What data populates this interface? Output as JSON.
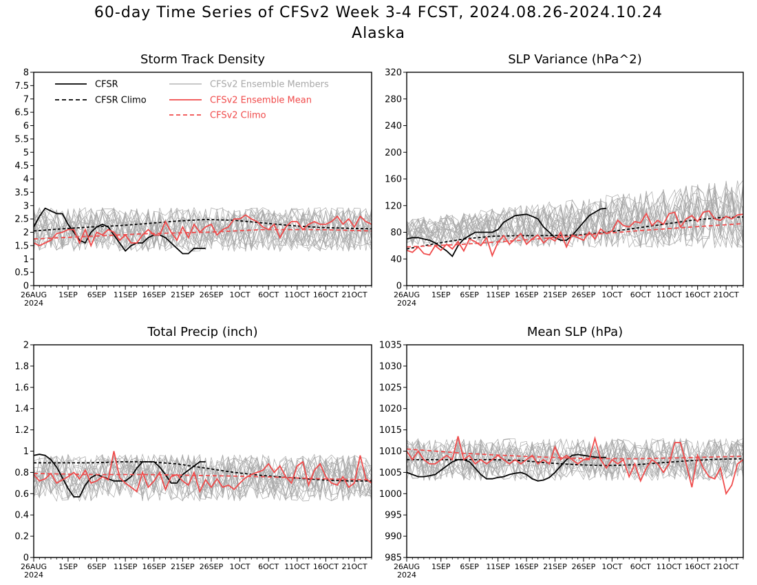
{
  "title": "60-day Time Series of CFSv2 Week 3-4 FCST, 2024.08.26-2024.10.24",
  "subtitle": "Alaska",
  "colors": {
    "cfsr": "#000000",
    "ensemble_member": "#a8a8a8",
    "ensemble_mean": "#f04a4a"
  },
  "x_ticks": [
    "26AUG",
    "1SEP",
    "6SEP",
    "11SEP",
    "16SEP",
    "21SEP",
    "26SEP",
    "1OCT",
    "6OCT",
    "11OCT",
    "16OCT",
    "21OCT"
  ],
  "x_tick_days": [
    0,
    6,
    11,
    16,
    21,
    26,
    31,
    36,
    41,
    46,
    51,
    56
  ],
  "x_year": "2024",
  "legend": {
    "cfsr": "CFSR",
    "cfsr_climo": "CFSR Climo",
    "members": "CFSv2 Ensemble Members",
    "ens_mean": "CFSv2 Ensemble Mean",
    "cfsv2_climo": "CFSv2 Climo"
  },
  "chart_data": [
    {
      "type": "line",
      "title": "Storm Track Density",
      "x_unit": "days since 26AUG2024",
      "xlim": [
        0,
        59
      ],
      "ylim": [
        0,
        8
      ],
      "y_ticks": [
        "0",
        "0.5",
        "1",
        "1.5",
        "2",
        "2.5",
        "3",
        "3.5",
        "4",
        "4.5",
        "5",
        "5.5",
        "6",
        "6.5",
        "7",
        "7.5",
        "8"
      ],
      "member_center": 2.1,
      "member_spread": 0.75,
      "member_count": 20,
      "series": [
        {
          "name": "CFSR",
          "x": [
            0,
            1,
            2,
            3,
            4,
            5,
            6,
            7,
            8,
            9,
            10,
            11,
            12,
            13,
            14,
            15,
            16,
            17,
            18,
            19,
            20,
            21,
            22,
            23,
            24,
            25,
            26,
            27,
            28,
            29,
            30
          ],
          "values": [
            2.2,
            2.6,
            2.9,
            2.8,
            2.7,
            2.7,
            2.3,
            2.0,
            1.7,
            1.6,
            2.0,
            2.2,
            2.3,
            2.2,
            1.9,
            1.6,
            1.3,
            1.5,
            1.6,
            1.6,
            1.8,
            1.9,
            1.9,
            1.8,
            1.6,
            1.4,
            1.2,
            1.2,
            1.4,
            1.4,
            1.4
          ]
        },
        {
          "name": "CFSR Climo",
          "x": [
            0,
            5,
            10,
            15,
            20,
            25,
            30,
            35,
            40,
            45,
            50,
            55,
            59
          ],
          "values": [
            2.05,
            2.13,
            2.2,
            2.25,
            2.33,
            2.42,
            2.48,
            2.45,
            2.35,
            2.25,
            2.18,
            2.15,
            2.13
          ]
        },
        {
          "name": "CFSv2 Ensemble Mean",
          "x": [
            0,
            1,
            2,
            3,
            4,
            5,
            6,
            7,
            8,
            9,
            10,
            11,
            12,
            13,
            14,
            15,
            16,
            17,
            18,
            19,
            20,
            21,
            22,
            23,
            24,
            25,
            26,
            27,
            28,
            29,
            30,
            31,
            32,
            33,
            34,
            35,
            36,
            37,
            38,
            39,
            40,
            41,
            42,
            43,
            44,
            45,
            46,
            47,
            48,
            49,
            50,
            51,
            52,
            53,
            54,
            55,
            56,
            57,
            58,
            59
          ],
          "values": [
            1.6,
            1.5,
            1.6,
            1.7,
            1.95,
            2.0,
            2.1,
            2.1,
            1.6,
            2.1,
            1.5,
            2.0,
            1.9,
            2.1,
            2.0,
            1.7,
            1.9,
            1.6,
            1.6,
            1.9,
            2.1,
            1.9,
            1.9,
            2.4,
            2.0,
            1.7,
            2.2,
            1.8,
            2.3,
            2.0,
            2.2,
            2.3,
            1.9,
            2.1,
            2.2,
            2.5,
            2.5,
            2.65,
            2.5,
            2.4,
            2.2,
            2.1,
            2.3,
            1.8,
            2.2,
            2.4,
            2.4,
            2.1,
            2.3,
            2.4,
            2.3,
            2.3,
            2.4,
            2.6,
            2.3,
            2.5,
            2.2,
            2.6,
            2.4,
            2.3
          ]
        },
        {
          "name": "CFSv2 Climo",
          "x": [
            0,
            10,
            20,
            30,
            40,
            50,
            59
          ],
          "values": [
            1.75,
            1.85,
            1.95,
            2.0,
            2.1,
            2.1,
            2.05
          ]
        }
      ]
    },
    {
      "type": "line",
      "title": "SLP Variance (hPa^2)",
      "x_unit": "days since 26AUG2024",
      "xlim": [
        0,
        59
      ],
      "ylim": [
        0,
        320
      ],
      "y_ticks": [
        "0",
        "40",
        "80",
        "120",
        "160",
        "200",
        "240",
        "280",
        "320"
      ],
      "member_center": 80,
      "member_spread": 30,
      "member_count": 20,
      "series": [
        {
          "name": "CFSR",
          "x": [
            0,
            1,
            2,
            3,
            4,
            5,
            6,
            7,
            8,
            9,
            10,
            11,
            12,
            13,
            14,
            15,
            16,
            17,
            18,
            19,
            20,
            21,
            22,
            23,
            24,
            25,
            26,
            27,
            28,
            29,
            30,
            31,
            32,
            33,
            34,
            35
          ],
          "values": [
            70,
            72,
            72,
            70,
            68,
            64,
            58,
            52,
            44,
            60,
            70,
            75,
            80,
            80,
            80,
            80,
            84,
            95,
            100,
            105,
            106,
            107,
            104,
            100,
            88,
            80,
            72,
            68,
            68,
            75,
            85,
            95,
            105,
            110,
            115,
            116
          ]
        },
        {
          "name": "CFSR Climo",
          "x": [
            0,
            5,
            10,
            15,
            20,
            25,
            30,
            35,
            40,
            45,
            50,
            55,
            59
          ],
          "values": [
            55,
            63,
            70,
            74,
            75,
            75,
            76,
            80,
            86,
            92,
            98,
            102,
            103
          ]
        },
        {
          "name": "CFSv2 Ensemble Mean",
          "x": [
            0,
            1,
            2,
            3,
            4,
            5,
            6,
            7,
            8,
            9,
            10,
            11,
            12,
            13,
            14,
            15,
            16,
            17,
            18,
            19,
            20,
            21,
            22,
            23,
            24,
            25,
            26,
            27,
            28,
            29,
            30,
            31,
            32,
            33,
            34,
            35,
            36,
            37,
            38,
            39,
            40,
            41,
            42,
            43,
            44,
            45,
            46,
            47,
            48,
            49,
            50,
            51,
            52,
            53,
            54,
            55,
            56,
            57,
            58,
            59
          ],
          "values": [
            53,
            50,
            58,
            48,
            46,
            60,
            53,
            62,
            55,
            66,
            52,
            70,
            66,
            60,
            72,
            45,
            65,
            75,
            62,
            70,
            78,
            62,
            70,
            76,
            64,
            72,
            67,
            80,
            58,
            76,
            72,
            68,
            80,
            70,
            85,
            78,
            82,
            98,
            90,
            88,
            96,
            94,
            108,
            90,
            98,
            92,
            108,
            110,
            88,
            100,
            105,
            96,
            110,
            112,
            100,
            98,
            104,
            100,
            106,
            107
          ]
        },
        {
          "name": "CFSv2 Climo",
          "x": [
            0,
            10,
            20,
            30,
            40,
            50,
            59
          ],
          "values": [
            58,
            62,
            68,
            75,
            82,
            88,
            93
          ]
        }
      ]
    },
    {
      "type": "line",
      "title": "Total Precip (inch)",
      "x_unit": "days since 26AUG2024",
      "xlim": [
        0,
        59
      ],
      "ylim": [
        0,
        2
      ],
      "y_ticks": [
        "0",
        "0.2",
        "0.4",
        "0.6",
        "0.8",
        "1",
        "1.2",
        "1.4",
        "1.6",
        "1.8",
        "2"
      ],
      "member_center": 0.75,
      "member_spread": 0.2,
      "member_count": 20,
      "series": [
        {
          "name": "CFSR",
          "x": [
            0,
            1,
            2,
            3,
            4,
            5,
            6,
            7,
            8,
            9,
            10,
            11,
            12,
            13,
            14,
            15,
            16,
            17,
            18,
            19,
            20,
            21,
            22,
            23,
            24,
            25,
            26,
            27,
            28,
            29,
            30
          ],
          "values": [
            0.96,
            0.97,
            0.96,
            0.92,
            0.85,
            0.75,
            0.65,
            0.57,
            0.57,
            0.68,
            0.75,
            0.78,
            0.76,
            0.74,
            0.72,
            0.72,
            0.72,
            0.76,
            0.84,
            0.9,
            0.9,
            0.9,
            0.85,
            0.78,
            0.7,
            0.7,
            0.78,
            0.82,
            0.86,
            0.9,
            0.9
          ]
        },
        {
          "name": "CFSR Climo",
          "x": [
            0,
            5,
            10,
            15,
            20,
            25,
            30,
            35,
            40,
            45,
            50,
            55,
            59
          ],
          "values": [
            0.89,
            0.89,
            0.89,
            0.9,
            0.9,
            0.88,
            0.84,
            0.8,
            0.77,
            0.75,
            0.73,
            0.72,
            0.72
          ]
        },
        {
          "name": "CFSv2 Ensemble Mean",
          "x": [
            0,
            1,
            2,
            3,
            4,
            5,
            6,
            7,
            8,
            9,
            10,
            11,
            12,
            13,
            14,
            15,
            16,
            17,
            18,
            19,
            20,
            21,
            22,
            23,
            24,
            25,
            26,
            27,
            28,
            29,
            30,
            31,
            32,
            33,
            34,
            35,
            36,
            37,
            38,
            39,
            40,
            41,
            42,
            43,
            44,
            45,
            46,
            47,
            48,
            49,
            50,
            51,
            52,
            53,
            54,
            55,
            56,
            57,
            58,
            59
          ],
          "values": [
            0.78,
            0.72,
            0.74,
            0.79,
            0.7,
            0.73,
            0.76,
            0.8,
            0.74,
            0.82,
            0.7,
            0.72,
            0.76,
            0.73,
            1.0,
            0.75,
            0.7,
            0.66,
            0.62,
            0.8,
            0.66,
            0.72,
            0.8,
            0.64,
            0.76,
            0.78,
            0.72,
            0.68,
            0.8,
            0.62,
            0.73,
            0.66,
            0.74,
            0.66,
            0.68,
            0.64,
            0.7,
            0.75,
            0.78,
            0.8,
            0.82,
            0.88,
            0.8,
            0.86,
            0.76,
            0.7,
            0.86,
            0.9,
            0.68,
            0.82,
            0.88,
            0.76,
            0.7,
            0.68,
            0.76,
            0.66,
            0.7,
            0.96,
            0.74,
            0.7
          ]
        },
        {
          "name": "CFSv2 Climo",
          "x": [
            0,
            10,
            20,
            30,
            40,
            50,
            59
          ],
          "values": [
            0.79,
            0.78,
            0.78,
            0.77,
            0.76,
            0.74,
            0.73
          ]
        }
      ]
    },
    {
      "type": "line",
      "title": "Mean SLP (hPa)",
      "x_unit": "days since 26AUG2024",
      "xlim": [
        0,
        59
      ],
      "ylim": [
        985,
        1035
      ],
      "y_ticks": [
        "985",
        "990",
        "995",
        "1000",
        "1005",
        "1010",
        "1015",
        "1020",
        "1025",
        "1030",
        "1035"
      ],
      "member_center": 1008,
      "member_spread": 4.5,
      "member_count": 20,
      "series": [
        {
          "name": "CFSR",
          "x": [
            0,
            1,
            2,
            3,
            4,
            5,
            6,
            7,
            8,
            9,
            10,
            11,
            12,
            13,
            14,
            15,
            16,
            17,
            18,
            19,
            20,
            21,
            22,
            23,
            24,
            25,
            26,
            27,
            28,
            29,
            30,
            31,
            32,
            33,
            34,
            35
          ],
          "values": [
            1005,
            1004.5,
            1004,
            1004,
            1004.2,
            1004.5,
            1005.5,
            1006.5,
            1007.5,
            1008,
            1008,
            1007.5,
            1006,
            1004.5,
            1003.5,
            1003.5,
            1003.8,
            1004,
            1004.5,
            1004.8,
            1005,
            1004.5,
            1003.5,
            1003,
            1003.2,
            1003.8,
            1005,
            1006.5,
            1008,
            1009,
            1009.2,
            1009,
            1008.8,
            1008.6,
            1008.5,
            1008.5
          ]
        },
        {
          "name": "CFSR Climo",
          "x": [
            0,
            5,
            10,
            15,
            20,
            25,
            30,
            35,
            40,
            45,
            50,
            55,
            59
          ],
          "values": [
            1008,
            1008,
            1008,
            1008,
            1007.8,
            1007.2,
            1006.8,
            1006.6,
            1006.8,
            1007.3,
            1007.8,
            1008.1,
            1008.2
          ]
        },
        {
          "name": "CFSv2 Ensemble Mean",
          "x": [
            0,
            1,
            2,
            3,
            4,
            5,
            6,
            7,
            8,
            9,
            10,
            11,
            12,
            13,
            14,
            15,
            16,
            17,
            18,
            19,
            20,
            21,
            22,
            23,
            24,
            25,
            26,
            27,
            28,
            29,
            30,
            31,
            32,
            33,
            34,
            35,
            36,
            37,
            38,
            39,
            40,
            41,
            42,
            43,
            44,
            45,
            46,
            47,
            48,
            49,
            50,
            51,
            52,
            53,
            54,
            55,
            56,
            57,
            58,
            59
          ],
          "values": [
            1010,
            1008,
            1010,
            1008,
            1007,
            1007,
            1008,
            1009,
            1008,
            1013.5,
            1008,
            1009,
            1007,
            1008,
            1007,
            1008,
            1009,
            1008,
            1007,
            1008,
            1007,
            1008,
            1009,
            1007,
            1008,
            1007,
            1011,
            1008,
            1009,
            1008,
            1007,
            1008,
            1008,
            1013,
            1008,
            1006,
            1008,
            1007,
            1008,
            1004,
            1007,
            1003,
            1006,
            1008,
            1007,
            1005,
            1007,
            1012,
            1012,
            1007,
            1001.5,
            1009,
            1006,
            1004,
            1003.5,
            1006,
            1000,
            1002,
            1007,
            1008
          ]
        },
        {
          "name": "CFSv2 Climo",
          "x": [
            0,
            10,
            20,
            30,
            40,
            50,
            59
          ],
          "values": [
            1010.5,
            1009.5,
            1008.8,
            1008.3,
            1008.2,
            1008.5,
            1008.8
          ]
        }
      ]
    }
  ]
}
